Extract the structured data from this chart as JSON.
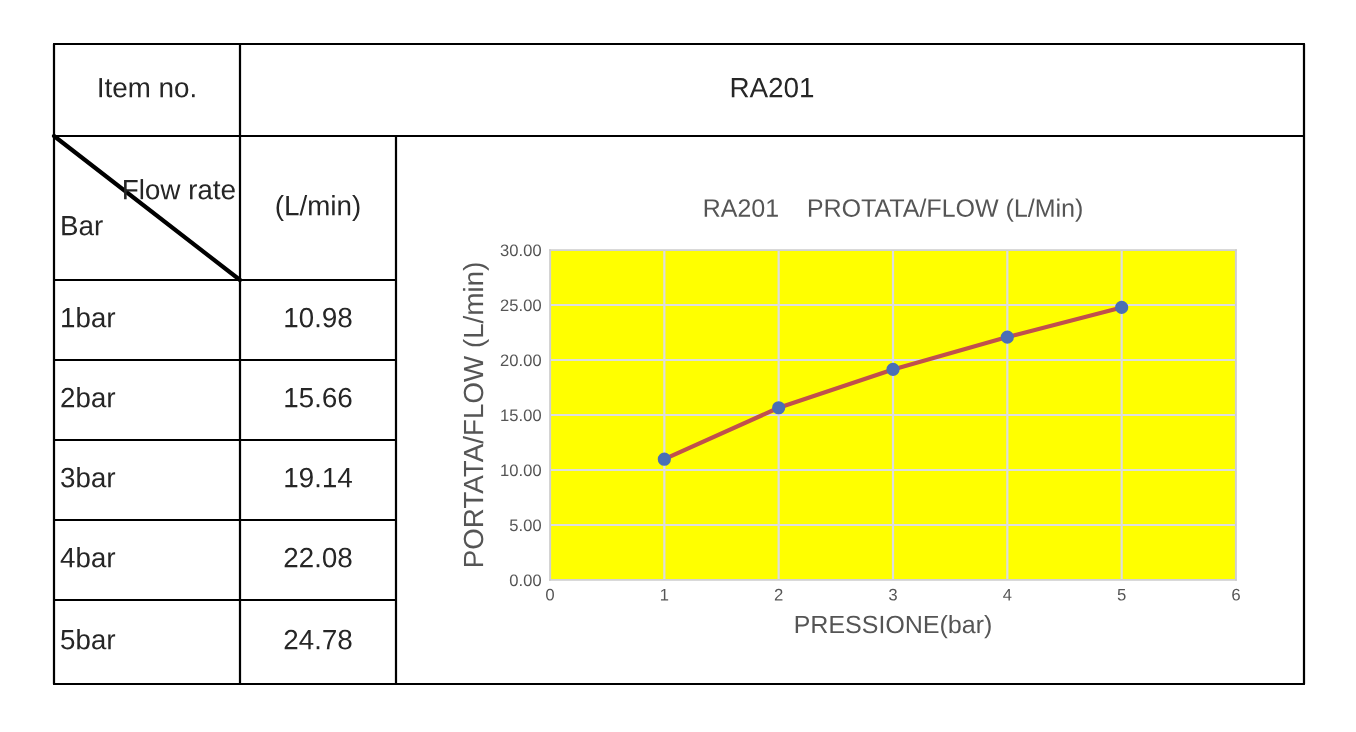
{
  "chart_data": {
    "type": "line",
    "title": "RA201    PROTATA/FLOW (L/Min)",
    "xlabel": "PRESSIONE(bar)",
    "ylabel": "PORTATA/FLOW (L/min)",
    "x": [
      1,
      2,
      3,
      4,
      5
    ],
    "series": [
      {
        "color": "#c0504d",
        "values": [
          10.98,
          15.66,
          19.14,
          22.08,
          24.78
        ]
      }
    ],
    "xlim": [
      0,
      6
    ],
    "xticks": [
      0,
      1,
      2,
      3,
      4,
      5,
      6
    ],
    "ylim": [
      0,
      30
    ],
    "yticks": [
      {
        "value": 0,
        "label": "0.00"
      },
      {
        "value": 5,
        "label": "5.00"
      },
      {
        "value": 10,
        "label": "10.00"
      },
      {
        "value": 15,
        "label": "15.00"
      },
      {
        "value": 20,
        "label": "20.00"
      },
      {
        "value": 25,
        "label": "25.00"
      },
      {
        "value": 30,
        "label": "30.00"
      }
    ],
    "grid": true,
    "marker": "circle",
    "line_style": "solid",
    "annotations": [
      "Item no.",
      "RA201",
      "Flow rate",
      "Bar",
      "(L/min)",
      "1bar",
      "2bar",
      "3bar",
      "4bar",
      "5bar",
      "10.98",
      "15.66",
      "19.14",
      "22.08",
      "24.78"
    ]
  }
}
